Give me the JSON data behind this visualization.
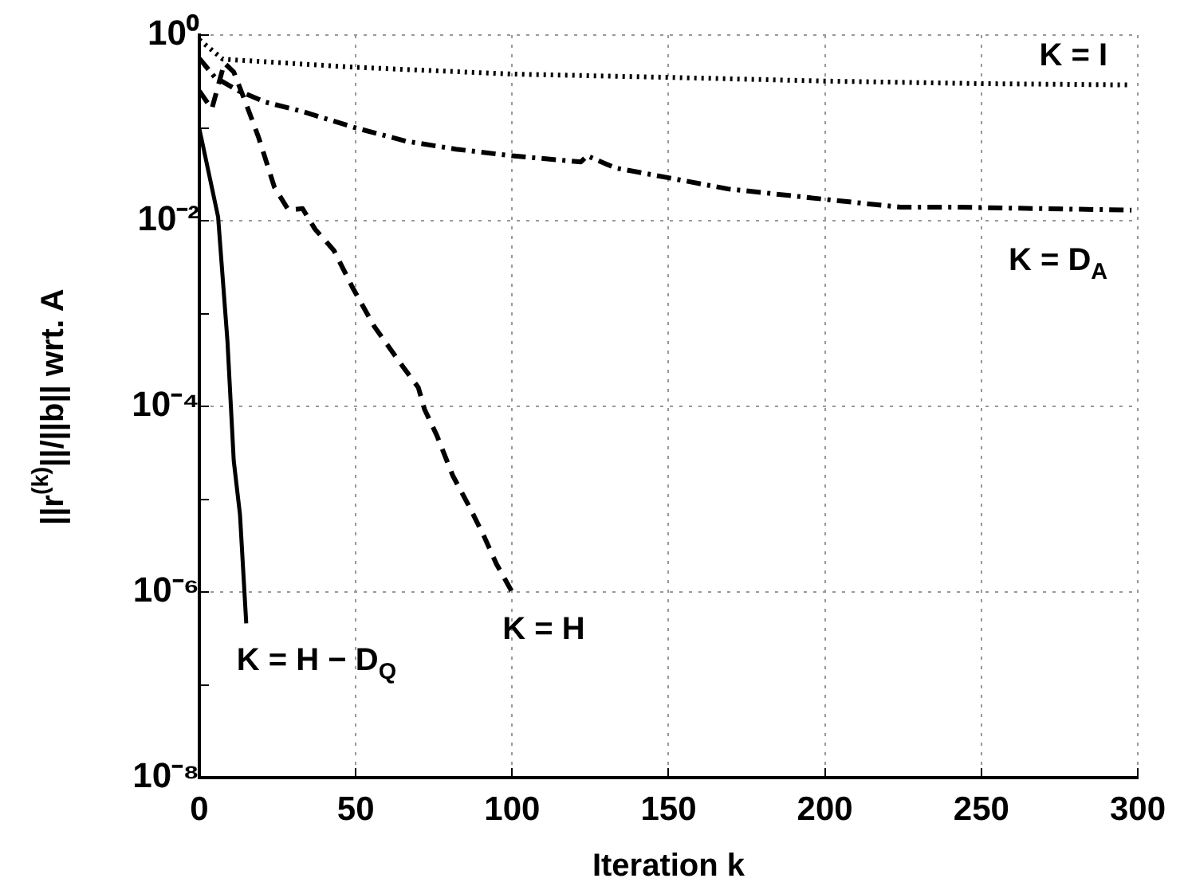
{
  "chart_data": {
    "type": "line",
    "xlabel": "Iteration k",
    "ylabel": "||r$^{(k)}$||/||b|| wrt. A",
    "log": "y",
    "grid": true,
    "legend": false,
    "marker": "none",
    "xlim": [
      0,
      300
    ],
    "xticks": [
      0,
      50,
      100,
      150,
      200,
      250,
      300
    ],
    "ylim": [
      1e-08,
      1
    ],
    "yticks": [
      {
        "value": 1,
        "label": "10⁰"
      },
      {
        "value": 0.1,
        "label": null
      },
      {
        "value": 0.01,
        "label": "10⁻²"
      },
      {
        "value": 0.001,
        "label": null
      },
      {
        "value": 0.0001,
        "label": "10⁻⁴"
      },
      {
        "value": 1e-05,
        "label": null
      },
      {
        "value": 1e-06,
        "label": "10⁻⁶"
      },
      {
        "value": 1e-07,
        "label": null
      },
      {
        "value": 1e-08,
        "label": "10⁻⁸"
      }
    ],
    "series": [
      {
        "name": "K = I",
        "color": "#000000",
        "line_style": "dotted",
        "x": [
          0,
          7.5,
          49.5,
          100,
          150,
          199,
          249,
          298
        ],
        "values": [
          0.89,
          0.55,
          0.45,
          0.38,
          0.35,
          0.32,
          0.3,
          0.29
        ]
      },
      {
        "name": "K = D$_{A}$",
        "color": "#000000",
        "line_style": "dashdot",
        "x": [
          0,
          5,
          12.6,
          21,
          33,
          50,
          66,
          82,
          100,
          122,
          124,
          133,
          150,
          169,
          200,
          224,
          241,
          298
        ],
        "values": [
          0.56,
          0.35,
          0.25,
          0.19,
          0.15,
          0.1,
          0.072,
          0.059,
          0.05,
          0.043,
          0.05,
          0.037,
          0.029,
          0.022,
          0.017,
          0.014,
          0.014,
          0.013
        ]
      },
      {
        "name": "K = H",
        "color": "#000000",
        "line_style": "dashed",
        "x": [
          0,
          4,
          8,
          11,
          15,
          19,
          24,
          28.5,
          33,
          37,
          43,
          49,
          56,
          65,
          70,
          72,
          76,
          81,
          86,
          91,
          95,
          100
        ],
        "values": [
          0.25,
          0.16,
          0.5,
          0.4,
          0.18,
          0.078,
          0.023,
          0.013,
          0.0135,
          0.0081,
          0.0048,
          0.0019,
          0.00072,
          0.00027,
          0.00016,
          9.3e-05,
          4.8e-05,
          1.8e-05,
          8.7e-06,
          4e-06,
          2e-06,
          1e-06
        ]
      },
      {
        "name": "K = H − D$_{Q}$",
        "color": "#000000",
        "line_style": "solid",
        "x": [
          0,
          6,
          9,
          11,
          13,
          15
        ],
        "values": [
          0.098,
          0.011,
          0.0005,
          2.6e-05,
          6.8e-06,
          4.6e-07
        ]
      }
    ]
  }
}
